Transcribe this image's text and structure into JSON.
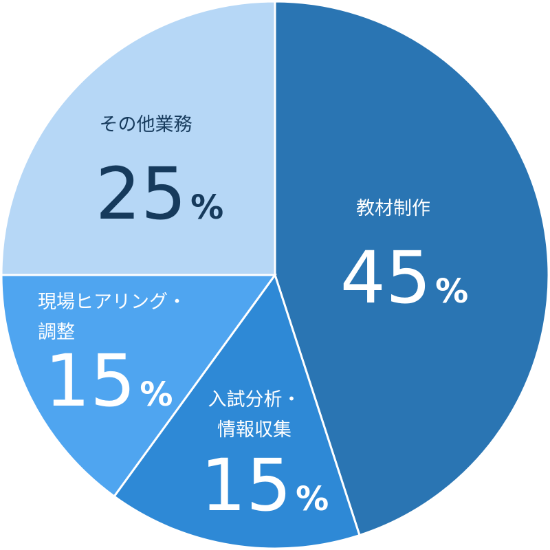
{
  "chart_data": {
    "type": "pie",
    "start": "top",
    "direction": "clockwise",
    "slices": [
      {
        "label_lines": [
          "教材制作"
        ],
        "value": 45,
        "display": "45",
        "unit": "%",
        "color": "#2a75b3",
        "text_color": "#ffffff"
      },
      {
        "label_lines": [
          "入試分析・",
          "情報収集"
        ],
        "value": 15,
        "display": "15",
        "unit": "%",
        "color": "#2e89d6",
        "text_color": "#ffffff"
      },
      {
        "label_lines": [
          "現場ヒアリング・",
          "調整"
        ],
        "value": 15,
        "display": "15",
        "unit": "%",
        "color": "#4fa5f0",
        "text_color": "#ffffff"
      },
      {
        "label_lines": [
          "その他業務"
        ],
        "value": 25,
        "display": "25",
        "unit": "%",
        "color": "#b6d7f6",
        "text_color": "#163a5c"
      }
    ]
  }
}
